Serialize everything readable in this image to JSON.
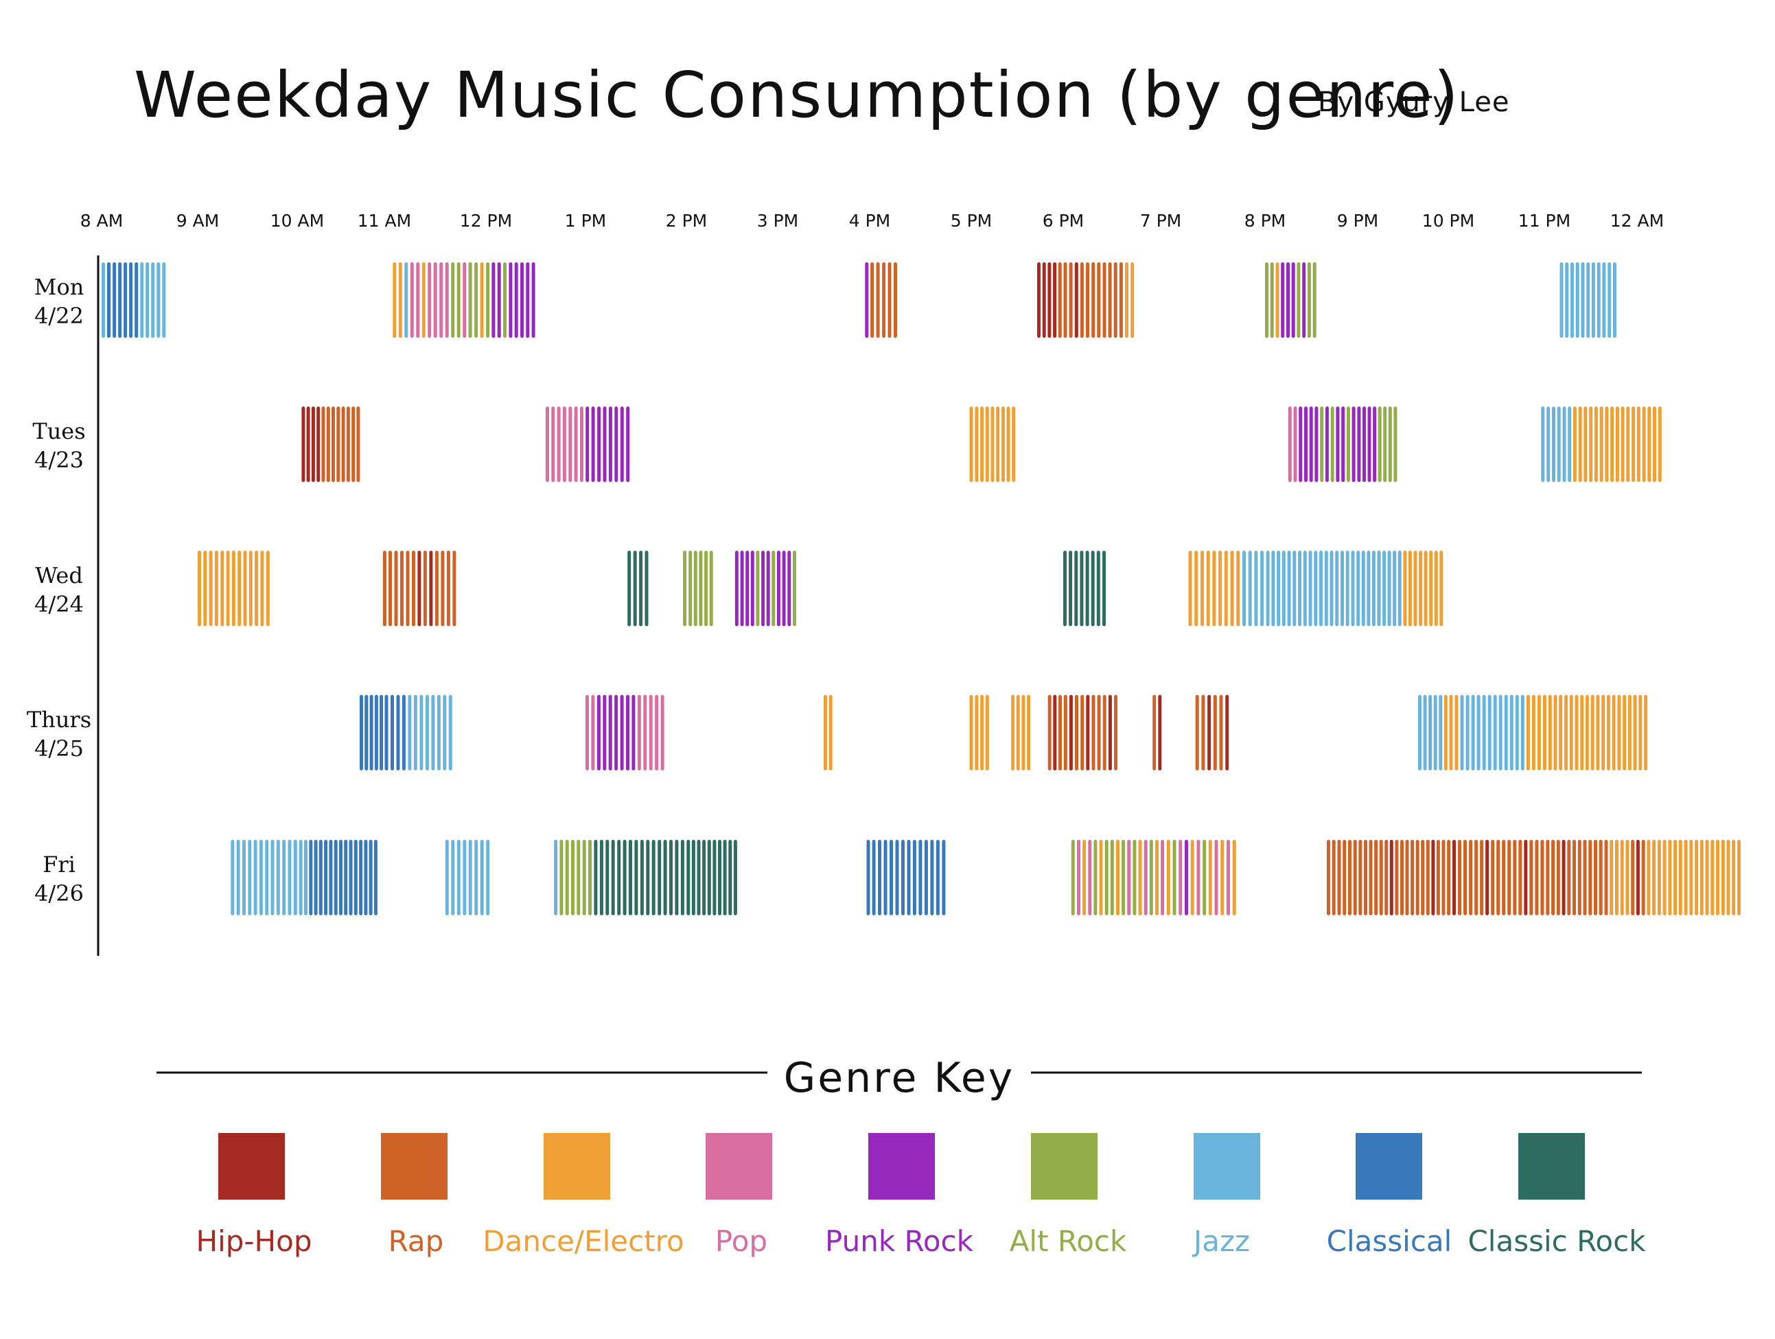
{
  "chart_data": {
    "type": "timeline",
    "title": "Weekday Music Consumption (by genre)",
    "author": "By Gyury Lee",
    "x_ticks": [
      "8 AM",
      "9 AM",
      "10 AM",
      "11 AM",
      "12 PM",
      "1 PM",
      "2 PM",
      "3 PM",
      "4 PM",
      "5 PM",
      "6 PM",
      "7 PM",
      "8 PM",
      "9 PM",
      "10 PM",
      "11 PM",
      "12 AM"
    ],
    "days": [
      {
        "line1": "Mon",
        "line2": "4/22"
      },
      {
        "line1": "Tues",
        "line2": "4/23"
      },
      {
        "line1": "Wed",
        "line2": "4/24"
      },
      {
        "line1": "Thurs",
        "line2": "4/25"
      },
      {
        "line1": "Fri",
        "line2": "4/26"
      }
    ],
    "genres": [
      {
        "key": "HH",
        "name": "Hip-Hop",
        "color": "#A52A22"
      },
      {
        "key": "RA",
        "name": "Rap",
        "color": "#CF6327"
      },
      {
        "key": "DE",
        "name": "Dance/Electro",
        "color": "#EEA037"
      },
      {
        "key": "PO",
        "name": "Pop",
        "color": "#D96FA0"
      },
      {
        "key": "PR",
        "name": "Punk Rock",
        "color": "#9628BE"
      },
      {
        "key": "AR",
        "name": "Alt Rock",
        "color": "#93AE48"
      },
      {
        "key": "JZ",
        "name": "Jazz",
        "color": "#6AB4DB"
      },
      {
        "key": "CL",
        "name": "Classical",
        "color": "#3779BA"
      },
      {
        "key": "CR",
        "name": "Classic Rock",
        "color": "#2E6C62"
      }
    ],
    "key_title": "Genre Key",
    "step_minutes": 3.44,
    "sessions": [
      [
        {
          "start": "8:00",
          "tracks": [
            "JZ",
            "CL",
            "CL",
            "CL",
            "CL",
            "CL",
            "CL",
            "JZ",
            "JZ",
            "JZ",
            "JZ",
            "JZ"
          ]
        },
        {
          "start": "11:05",
          "tracks": [
            "DE",
            "DE",
            "JZ",
            "PO",
            "PO",
            "DE",
            "PO",
            "PO",
            "PO",
            "PO",
            "AR",
            "AR",
            "PO",
            "AR",
            "AR",
            "DE",
            "AR",
            "PR",
            "PR",
            "AR",
            "PR",
            "PR",
            "PR",
            "PR",
            "PR"
          ]
        },
        {
          "start": "15:57",
          "tracks": [
            "PR",
            "RA",
            "RA",
            "RA",
            "RA",
            "RA"
          ]
        },
        {
          "start": "17:43",
          "tracks": [
            "HH",
            "HH",
            "HH",
            "HH",
            "RA",
            "RA",
            "RA",
            "HH",
            "RA",
            "RA",
            "RA",
            "RA",
            "RA",
            "RA",
            "RA",
            "RA",
            "DE",
            "DE"
          ]
        },
        {
          "start": "20:00",
          "tracks": [
            "AR",
            "AR",
            "DE",
            "PR",
            "PR",
            "PR",
            "AR",
            "PR",
            "AR",
            "AR"
          ]
        },
        {
          "start": "23:10",
          "tracks": [
            "JZ",
            "JZ",
            "JZ",
            "JZ",
            "JZ",
            "JZ",
            "JZ",
            "JZ",
            "JZ",
            "JZ",
            "JZ"
          ]
        }
      ],
      [
        {
          "start": "10:03",
          "tracks": [
            "HH",
            "HH",
            "HH",
            "HH",
            "RA",
            "RA",
            "RA",
            "RA",
            "RA",
            "RA",
            "RA",
            "RA"
          ]
        },
        {
          "start": "12:36",
          "tracks": [
            "PO",
            "PO",
            "PO",
            "PO",
            "PO",
            "PO",
            "PO",
            "PR",
            "PR",
            "PR",
            "PR",
            "PR",
            "PR",
            "PR",
            "PR"
          ]
        },
        {
          "start": "16:59",
          "tracks": [
            "DE",
            "DE",
            "DE",
            "DE",
            "DE",
            "DE",
            "DE",
            "DE",
            "DE"
          ]
        },
        {
          "start": "20:15",
          "tracks": [
            "PO",
            "PO",
            "PR",
            "PR",
            "PR",
            "PR",
            "AR",
            "PR",
            "AR",
            "PR",
            "PR",
            "AR",
            "PR",
            "PR",
            "PR",
            "PR",
            "PR",
            "AR",
            "AR",
            "AR",
            "AR"
          ]
        },
        {
          "start": "22:58",
          "tracks": [
            "JZ",
            "JZ",
            "JZ",
            "JZ",
            "JZ",
            "JZ",
            "DE",
            "DE",
            "DE",
            "DE",
            "DE",
            "DE",
            "DE",
            "DE",
            "DE",
            "DE",
            "DE",
            "DE",
            "DE",
            "DE",
            "DE",
            "DE",
            "DE"
          ]
        }
      ],
      [
        {
          "start": "9:00",
          "tracks": [
            "DE",
            "DE",
            "DE",
            "DE",
            "DE",
            "DE",
            "DE",
            "DE",
            "DE",
            "DE",
            "DE",
            "DE",
            "DE"
          ]
        },
        {
          "start": "10:59",
          "tracks": [
            "RA",
            "RA",
            "RA",
            "RA",
            "RA",
            "RA",
            "HH",
            "RA",
            "HH",
            "RA",
            "RA",
            "RA",
            "RA"
          ]
        },
        {
          "start": "13:25",
          "tracks": [
            "CR",
            "CR",
            "CR",
            "CR"
          ]
        },
        {
          "start": "13:58",
          "tracks": [
            "AR",
            "AR",
            "AR",
            "AR",
            "AR",
            "AR"
          ]
        },
        {
          "start": "14:32",
          "tracks": [
            "PR",
            "PR",
            "PR",
            "PR",
            "AR",
            "PR",
            "PR",
            "AR",
            "PR",
            "PR",
            "PR",
            "AR"
          ]
        },
        {
          "start": "18:00",
          "tracks": [
            "CR",
            "CR",
            "CR",
            "CR",
            "CR",
            "CR",
            "CR",
            "CR"
          ]
        },
        {
          "start": "19:16",
          "tracks": [
            "DE",
            "DE",
            "DE",
            "DE",
            "DE",
            "DE",
            "DE",
            "DE",
            "DE",
            "JZ",
            "JZ",
            "JZ",
            "JZ",
            "JZ",
            "JZ",
            "JZ",
            "JZ",
            "JZ",
            "JZ",
            "JZ",
            "JZ",
            "JZ",
            "JZ",
            "JZ",
            "JZ",
            "JZ",
            "JZ",
            "JZ",
            "JZ",
            "JZ",
            "JZ",
            "JZ",
            "JZ",
            "JZ",
            "JZ",
            "JZ",
            "JZ",
            "JZ",
            "JZ",
            "DE",
            "DE",
            "DE",
            "DE",
            "DE",
            "DE",
            "DE",
            "DE"
          ]
        }
      ],
      [
        {
          "start": "10:43",
          "tracks": [
            "CL",
            "CL",
            "CL",
            "CL",
            "CL",
            "CL",
            "CL",
            "CL",
            "CL",
            "JZ",
            "JZ",
            "JZ",
            "JZ",
            "JZ",
            "JZ",
            "JZ",
            "JZ"
          ]
        },
        {
          "start": "13:00",
          "tracks": [
            "PO",
            "PO",
            "PR",
            "PR",
            "PR",
            "PR",
            "PR",
            "PR",
            "PR",
            "PO",
            "PO",
            "PO",
            "PO",
            "PO"
          ]
        },
        {
          "start": "15:30",
          "tracks": [
            "DE",
            "DE"
          ]
        },
        {
          "start": "16:59",
          "tracks": [
            "DE",
            "DE",
            "DE",
            "DE"
          ]
        },
        {
          "start": "17:26",
          "tracks": [
            "DE",
            "DE",
            "DE",
            "DE"
          ]
        },
        {
          "start": "17:50",
          "tracks": [
            "RA",
            "HH",
            "RA",
            "RA",
            "HH",
            "RA",
            "RA",
            "HH",
            "RA",
            "RA",
            "RA",
            "HH",
            "RA"
          ]
        },
        {
          "start": "18:55",
          "tracks": [
            "RA",
            "HH"
          ]
        },
        {
          "start": "19:20",
          "tracks": [
            "RA",
            "RA",
            "HH",
            "RA",
            "RA",
            "HH"
          ]
        },
        {
          "start": "21:40",
          "tracks": [
            "JZ",
            "JZ",
            "JZ",
            "JZ",
            "JZ",
            "DE",
            "DE",
            "DE",
            "JZ",
            "JZ",
            "JZ",
            "JZ",
            "JZ",
            "JZ",
            "JZ",
            "JZ",
            "JZ",
            "JZ",
            "JZ",
            "JZ",
            "DE",
            "DE",
            "DE",
            "DE",
            "DE",
            "DE",
            "DE",
            "DE",
            "DE",
            "DE",
            "DE",
            "DE",
            "DE",
            "DE",
            "DE",
            "DE",
            "DE",
            "DE",
            "DE",
            "DE",
            "DE",
            "DE",
            "DE"
          ]
        }
      ],
      [
        {
          "start": "9:20",
          "tracks": [
            "JZ",
            "JZ",
            "JZ",
            "JZ",
            "JZ",
            "JZ",
            "JZ",
            "JZ",
            "JZ",
            "JZ",
            "JZ",
            "JZ",
            "JZ",
            "JZ",
            "CL",
            "CL",
            "CL",
            "CL",
            "CL",
            "CL",
            "CL",
            "CL",
            "CL",
            "CL",
            "CL",
            "CL",
            "CL",
            "CL"
          ]
        },
        {
          "start": "11:36",
          "tracks": [
            "JZ",
            "JZ",
            "JZ",
            "JZ",
            "JZ",
            "JZ",
            "JZ",
            "JZ"
          ]
        },
        {
          "start": "12:41",
          "tracks": [
            "JZ",
            "AR",
            "AR",
            "AR",
            "AR",
            "AR",
            "AR",
            "CR",
            "CR",
            "CR",
            "CR",
            "CR",
            "CR",
            "CR",
            "CR",
            "CR",
            "CR",
            "CR",
            "CR",
            "CR",
            "CR",
            "CR",
            "CR",
            "CR",
            "CR",
            "CR",
            "CR",
            "CR",
            "CR",
            "CR",
            "CR",
            "CR",
            "CR"
          ]
        },
        {
          "start": "15:58",
          "tracks": [
            "CL",
            "CL",
            "CL",
            "CL",
            "CL",
            "CL",
            "CL",
            "CL",
            "CL",
            "CL",
            "CL",
            "CL",
            "CL",
            "CL"
          ]
        },
        {
          "start": "18:05",
          "tracks": [
            "AR",
            "PO",
            "DE",
            "PO",
            "AR",
            "DE",
            "AR",
            "AR",
            "DE",
            "AR",
            "PO",
            "AR",
            "DE",
            "PO",
            "AR",
            "DE",
            "PO",
            "DE",
            "AR",
            "PO",
            "PR",
            "DE",
            "PO",
            "AR",
            "DE",
            "PO",
            "DE",
            "PO",
            "DE"
          ]
        },
        {
          "start": "20:40",
          "tracks": [
            "RA",
            "RA",
            "RA",
            "RA",
            "RA",
            "RA",
            "RA",
            "RA",
            "RA",
            "RA",
            "RA",
            "RA",
            "HH",
            "RA",
            "RA",
            "RA",
            "RA",
            "RA",
            "RA",
            "RA",
            "HH",
            "RA",
            "RA",
            "RA",
            "HH",
            "RA",
            "RA",
            "RA",
            "RA",
            "RA",
            "HH",
            "RA",
            "RA",
            "RA",
            "RA",
            "RA",
            "RA",
            "HH",
            "RA",
            "RA",
            "RA",
            "RA",
            "RA",
            "RA",
            "HH",
            "RA",
            "RA",
            "RA",
            "RA",
            "RA",
            "RA",
            "RA",
            "RA",
            "DE",
            "DE",
            "DE",
            "DE",
            "RA",
            "HH",
            "RA",
            "DE",
            "DE",
            "DE",
            "DE",
            "DE",
            "DE",
            "DE",
            "DE",
            "DE",
            "DE",
            "DE",
            "DE",
            "DE",
            "DE",
            "DE",
            "DE",
            "DE",
            "DE"
          ]
        }
      ]
    ]
  }
}
